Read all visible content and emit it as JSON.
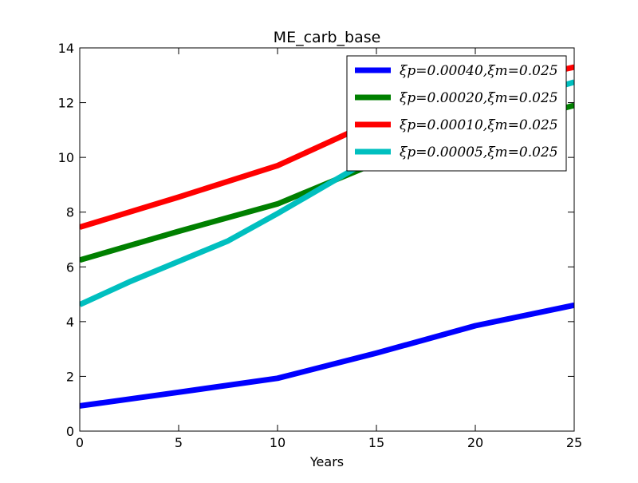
{
  "chart_data": {
    "type": "line",
    "title": "ME_carb_base",
    "xlabel": "Years",
    "ylabel": "",
    "xlim": [
      0,
      25
    ],
    "ylim": [
      0,
      14
    ],
    "xticks": [
      0,
      5,
      10,
      15,
      20,
      25
    ],
    "yticks": [
      0,
      2,
      4,
      6,
      8,
      10,
      12,
      14
    ],
    "grid": false,
    "legend_position": "top-right",
    "series": [
      {
        "name": "ξp=0.00040,ξm=0.025",
        "color": "#0000ff",
        "x": [
          0,
          5,
          10,
          15,
          20,
          25
        ],
        "y": [
          0.92,
          1.42,
          1.93,
          2.85,
          3.85,
          4.6
        ]
      },
      {
        "name": "ξp=0.00020,ξm=0.025",
        "color": "#008000",
        "x": [
          0,
          5,
          10,
          15,
          20,
          25
        ],
        "y": [
          6.25,
          7.3,
          8.3,
          9.8,
          10.95,
          11.9
        ]
      },
      {
        "name": "ξp=0.00010,ξm=0.025",
        "color": "#ff0000",
        "x": [
          0,
          5,
          10,
          15,
          20,
          25
        ],
        "y": [
          7.45,
          8.55,
          9.7,
          11.35,
          12.5,
          13.3
        ]
      },
      {
        "name": "ξp=0.00005,ξm=0.025",
        "color": "#00bfbf",
        "x": [
          0,
          2.5,
          5,
          7.5,
          10,
          12.5,
          15,
          20,
          25
        ],
        "y": [
          4.62,
          5.45,
          6.2,
          6.95,
          7.95,
          9.0,
          10.05,
          11.7,
          12.75
        ]
      }
    ]
  }
}
